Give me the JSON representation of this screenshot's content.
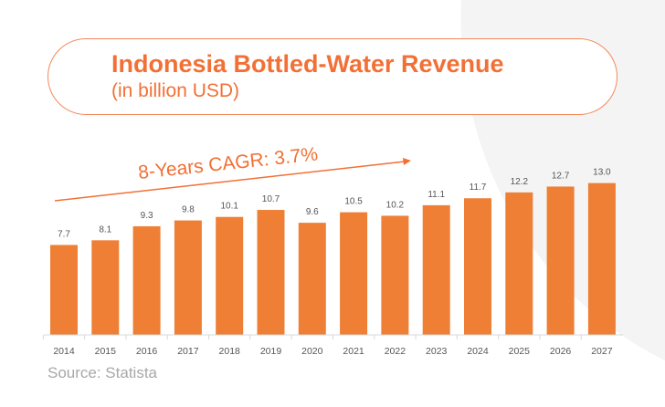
{
  "chart_data": {
    "type": "bar",
    "title": "Indonesia Bottled-Water Revenue",
    "subtitle": "(in billion USD)",
    "categories": [
      "2014",
      "2015",
      "2016",
      "2017",
      "2018",
      "2019",
      "2020",
      "2021",
      "2022",
      "2023",
      "2024",
      "2025",
      "2026",
      "2027"
    ],
    "values": [
      7.7,
      8.1,
      9.3,
      9.8,
      10.1,
      10.7,
      9.6,
      10.5,
      10.2,
      11.1,
      11.7,
      12.2,
      12.7,
      13.0
    ],
    "value_labels": [
      "7.7",
      "8.1",
      "9.3",
      "9.8",
      "10.1",
      "10.7",
      "9.6",
      "10.5",
      "10.2",
      "11.1",
      "11.7",
      "12.2",
      "12.7",
      "13.0"
    ],
    "annotation": "8-Years CAGR: 3.7%",
    "source": "Source: Statista",
    "ylim": [
      0,
      13
    ],
    "grid": false,
    "colors": {
      "bar": "#ee7f35",
      "accent": "#f27035",
      "label": "#555555",
      "source": "#a8a8a8"
    }
  }
}
